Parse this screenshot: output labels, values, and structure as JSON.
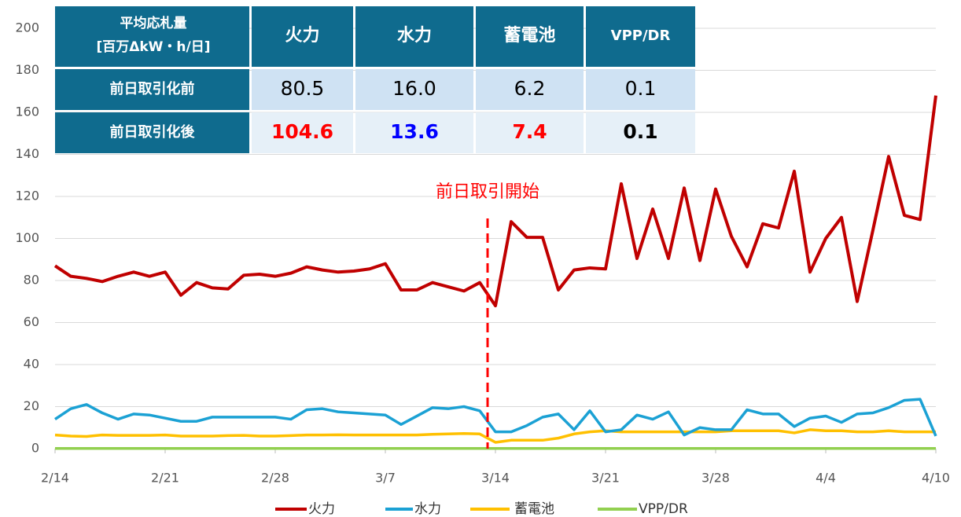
{
  "chart_data": {
    "type": "line",
    "annotation": "前日取引開始",
    "categories": [
      "2/14",
      null,
      null,
      null,
      null,
      null,
      null,
      "2/21",
      null,
      null,
      null,
      null,
      null,
      null,
      "2/28",
      null,
      null,
      null,
      null,
      null,
      null,
      "3/7",
      null,
      null,
      null,
      null,
      null,
      null,
      "3/14",
      null,
      null,
      null,
      null,
      null,
      null,
      "3/21",
      null,
      null,
      null,
      null,
      null,
      null,
      "3/28",
      null,
      null,
      null,
      null,
      null,
      null,
      "4/4",
      null,
      null,
      null,
      null,
      null,
      null,
      "4/10"
    ],
    "series": [
      {
        "name": "火力",
        "color": "#c00000",
        "values": [
          87,
          82,
          81,
          79.5,
          82,
          84,
          82,
          84,
          73,
          79,
          76.5,
          76,
          82.5,
          83,
          82,
          83.5,
          86.5,
          85,
          84,
          84.5,
          85.5,
          88,
          75.5,
          75.5,
          79,
          77,
          75,
          79,
          68,
          108,
          100.5,
          100.5,
          75.5,
          85,
          86,
          85.5,
          126,
          90.5,
          114,
          90.5,
          124,
          89.5,
          123.5,
          101,
          86.5,
          107,
          105,
          132,
          84,
          100,
          110,
          70,
          104,
          139,
          111,
          109,
          168
        ]
      },
      {
        "name": "水力",
        "color": "#1ba1d4",
        "values": [
          14,
          19,
          21,
          17,
          14,
          16.5,
          16,
          14.5,
          13,
          13,
          15,
          15,
          15,
          15,
          15,
          14,
          18.5,
          19,
          17.5,
          17,
          16.5,
          16,
          11.5,
          15.5,
          19.5,
          19,
          20,
          18,
          8,
          8,
          11,
          15,
          16.5,
          9,
          18,
          8,
          9,
          16,
          14,
          17.5,
          6.5,
          10,
          9,
          9,
          18.5,
          16.5,
          16.5,
          10.5,
          14.5,
          15.5,
          12.5,
          16.5,
          17,
          19.5,
          23,
          23.5,
          6
        ]
      },
      {
        "name": "蓄電池",
        "color": "#ffc000",
        "values": [
          6.5,
          6,
          5.8,
          6.5,
          6.3,
          6.3,
          6.3,
          6.5,
          6,
          6,
          6,
          6.2,
          6.3,
          6,
          6,
          6.2,
          6.5,
          6.5,
          6.6,
          6.5,
          6.5,
          6.5,
          6.5,
          6.5,
          6.8,
          7,
          7.2,
          7,
          3,
          4,
          4,
          4,
          5,
          7,
          8,
          8.5,
          8,
          8,
          8,
          8,
          8,
          8,
          8,
          8.5,
          8.5,
          8.5,
          8.5,
          7.5,
          9,
          8.5,
          8.5,
          8,
          8,
          8.5,
          8,
          8,
          8
        ]
      },
      {
        "name": "VPP/DR",
        "color": "#92d050",
        "values": [
          0.1,
          0.1,
          0.1,
          0.1,
          0.1,
          0.1,
          0.1,
          0.1,
          0.1,
          0.1,
          0.1,
          0.1,
          0.1,
          0.1,
          0.1,
          0.1,
          0.1,
          0.1,
          0.1,
          0.1,
          0.1,
          0.1,
          0.1,
          0.1,
          0.1,
          0.1,
          0.1,
          0.1,
          0.1,
          0.1,
          0.1,
          0.1,
          0.1,
          0.1,
          0.1,
          0.1,
          0.1,
          0.1,
          0.1,
          0.1,
          0.1,
          0.1,
          0.1,
          0.1,
          0.1,
          0.1,
          0.1,
          0.1,
          0.1,
          0.1,
          0.1,
          0.1,
          0.1,
          0.1,
          0.1,
          0.1,
          0.1
        ]
      }
    ],
    "ylim": [
      0,
      200
    ],
    "yticks": [
      0,
      20,
      40,
      60,
      80,
      100,
      120,
      140,
      160,
      180,
      200
    ],
    "grid": true
  },
  "table": {
    "corner": [
      "平均応札量",
      "[百万ΔkW・h/日]"
    ],
    "columns": [
      "火力",
      "水力",
      "蓄電池",
      "VPP/DR"
    ],
    "rows": [
      {
        "label": "前日取引化前",
        "cells": [
          "80.5",
          "16.0",
          "6.2",
          "0.1"
        ]
      },
      {
        "label": "前日取引化後",
        "cells": [
          "104.6",
          "13.6",
          "7.4",
          "0.1"
        ]
      }
    ]
  }
}
